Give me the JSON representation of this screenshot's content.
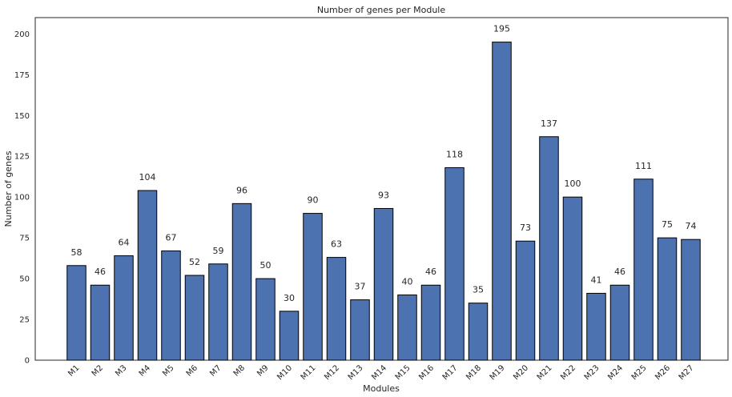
{
  "chart_data": {
    "type": "bar",
    "title": "Number of genes per Module",
    "xlabel": "Modules",
    "ylabel": "Number of genes",
    "ylim": [
      0,
      210
    ],
    "yticks": [
      0,
      25,
      50,
      75,
      100,
      125,
      150,
      175,
      200
    ],
    "grid": false,
    "legend": "none",
    "categories": [
      "M1",
      "M2",
      "M3",
      "M4",
      "M5",
      "M6",
      "M7",
      "M8",
      "M9",
      "M10",
      "M11",
      "M12",
      "M13",
      "M14",
      "M15",
      "M16",
      "M17",
      "M18",
      "M19",
      "M20",
      "M21",
      "M22",
      "M23",
      "M24",
      "M25",
      "M26",
      "M27"
    ],
    "values": [
      58,
      46,
      64,
      104,
      67,
      52,
      59,
      96,
      50,
      30,
      90,
      63,
      37,
      93,
      40,
      46,
      118,
      35,
      195,
      73,
      137,
      100,
      41,
      46,
      111,
      75,
      74
    ],
    "bar_color": "#4c72b0",
    "edge_color": "#000000"
  }
}
